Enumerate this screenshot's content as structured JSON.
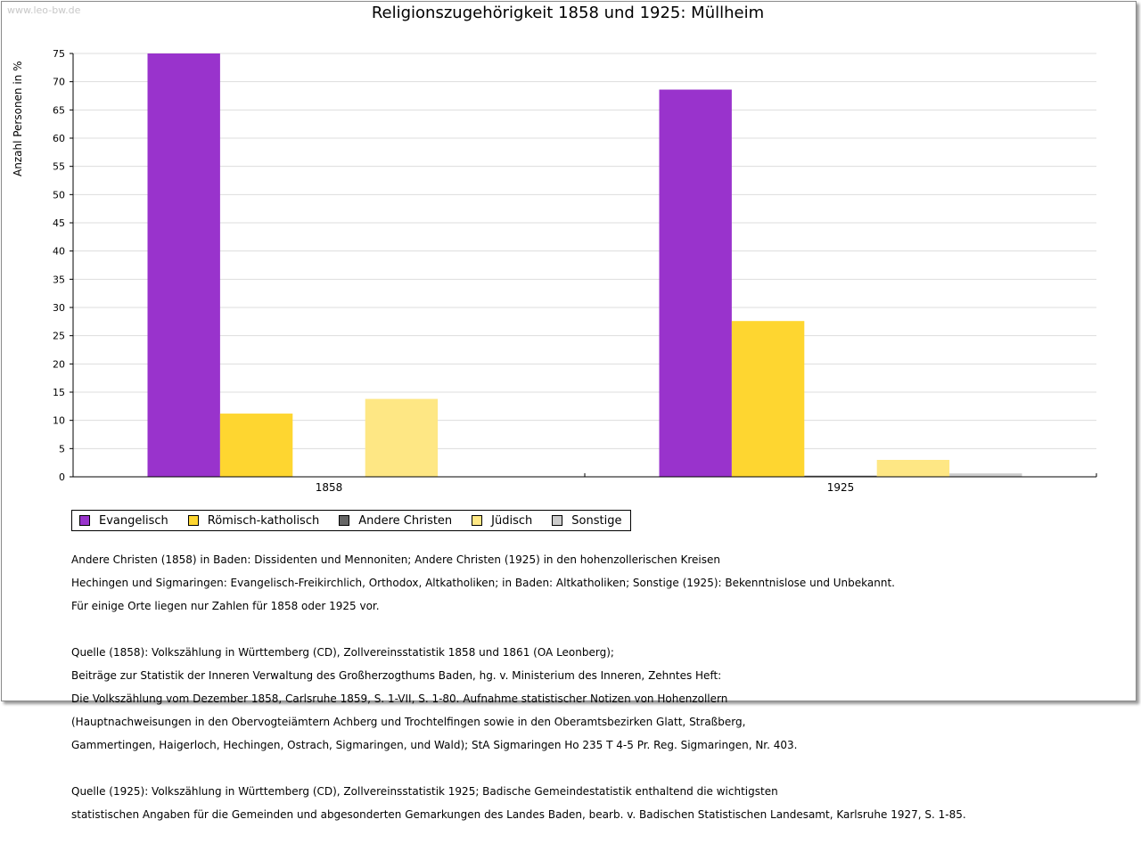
{
  "watermark": "www.leo-bw.de",
  "colors": {
    "evangelisch": "#9933cc",
    "katholisch": "#fed630",
    "andere": "#666666",
    "juedisch": "#fee784",
    "sonstige": "#cccccc",
    "grid": "#dddddd"
  },
  "chart_data": {
    "type": "bar",
    "title": "Religionszugehörigkeit 1858 und 1925: Müllheim",
    "xlabel": "",
    "ylabel": "Anzahl Personen in %",
    "ylim": [
      0,
      75
    ],
    "yticks": [
      0,
      5,
      10,
      15,
      20,
      25,
      30,
      35,
      40,
      45,
      50,
      55,
      60,
      65,
      70,
      75
    ],
    "categories": [
      "1858",
      "1925"
    ],
    "grid": true,
    "legend_position": "bottom-left",
    "series": [
      {
        "name": "Evangelisch",
        "color": "#9933cc",
        "values": [
          75.0,
          68.6
        ]
      },
      {
        "name": "Römisch-katholisch",
        "color": "#fed630",
        "values": [
          11.2,
          27.6
        ]
      },
      {
        "name": "Andere Christen",
        "color": "#666666",
        "values": [
          0,
          0.2
        ]
      },
      {
        "name": "Jüdisch",
        "color": "#fee784",
        "values": [
          13.8,
          3.0
        ]
      },
      {
        "name": "Sonstige",
        "color": "#cccccc",
        "values": [
          0,
          0.6
        ]
      }
    ]
  },
  "notes": {
    "para1": [
      "Andere Christen (1858) in Baden: Dissidenten und Mennoniten; Andere Christen (1925) in den hohenzollerischen Kreisen",
      "Hechingen und Sigmaringen: Evangelisch-Freikirchlich, Orthodox, Altkatholiken; in Baden: Altkatholiken; Sonstige (1925): Bekenntnislose und Unbekannt.",
      "Für einige Orte liegen nur Zahlen für 1858 oder 1925 vor."
    ],
    "para2": [
      "Quelle (1858): Volkszählung in Württemberg (CD), Zollvereinsstatistik 1858 und 1861 (OA Leonberg);",
      "Beiträge zur Statistik der Inneren Verwaltung des Großherzogthums Baden, hg. v. Ministerium des Inneren, Zehntes Heft:",
      "Die Volkszählung vom Dezember 1858, Carlsruhe 1859, S. 1-VII, S. 1-80. Aufnahme statistischer Notizen von Hohenzollern",
      "(Hauptnachweisungen in den Obervogteiämtern Achberg und Trochtelfingen sowie in den Oberamtsbezirken Glatt, Straßberg,",
      "Gammertingen, Haigerloch, Hechingen, Ostrach, Sigmaringen, und Wald); StA Sigmaringen Ho 235 T 4-5 Pr. Reg. Sigmaringen, Nr. 403."
    ],
    "para3": [
      "Quelle (1925): Volkszählung in Württemberg (CD), Zollvereinsstatistik 1925; Badische Gemeindestatistik enthaltend die wichtigsten",
      "statistischen Angaben für die Gemeinden und abgesonderten Gemarkungen des Landes Baden, bearb. v. Badischen Statistischen Landesamt, Karlsruhe 1927, S. 1-85."
    ]
  }
}
